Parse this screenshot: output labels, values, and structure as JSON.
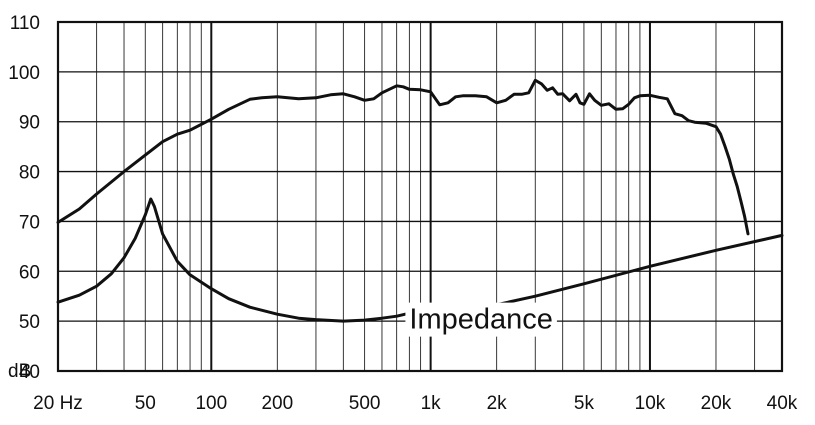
{
  "chart_data": {
    "type": "line",
    "x_scale": "log",
    "xlim": [
      20,
      40000
    ],
    "ylim": [
      40,
      110
    ],
    "grid": true,
    "y_unit_label": "dB",
    "y_ticks": [
      40,
      50,
      60,
      70,
      80,
      90,
      100,
      110
    ],
    "y_tick_labels": [
      "40",
      "50",
      "60",
      "70",
      "80",
      "90",
      "100",
      "110"
    ],
    "x_ticks": [
      20,
      50,
      100,
      200,
      500,
      1000,
      2000,
      5000,
      10000,
      20000,
      40000
    ],
    "x_tick_labels": [
      "20 Hz",
      "50",
      "100",
      "200",
      "500",
      "1k",
      "2k",
      "5k",
      "10k",
      "20k",
      "40k"
    ],
    "annotations": [
      {
        "text": "Impedance",
        "x": 1700,
        "y": 48.5
      }
    ],
    "series": [
      {
        "name": "",
        "x": [
          20,
          25,
          30,
          40,
          50,
          60,
          70,
          80,
          100,
          120,
          150,
          170,
          200,
          250,
          300,
          350,
          400,
          450,
          500,
          550,
          600,
          700,
          750,
          800,
          900,
          1000,
          1100,
          1200,
          1300,
          1400,
          1600,
          1800,
          2000,
          2200,
          2400,
          2600,
          2800,
          3000,
          3200,
          3400,
          3600,
          3800,
          4000,
          4300,
          4600,
          4800,
          5000,
          5300,
          5600,
          6000,
          6500,
          7000,
          7500,
          8000,
          8500,
          9000,
          10000,
          11000,
          12000,
          13000,
          14000,
          15000,
          16000,
          18000,
          20000,
          21000,
          22000,
          23000,
          24000,
          25000,
          26000,
          27000,
          28000
        ],
        "y": [
          69.8,
          72.5,
          75.5,
          80,
          83.3,
          86,
          87.5,
          88.3,
          90.5,
          92.5,
          94.5,
          94.8,
          95,
          94.6,
          94.8,
          95.4,
          95.6,
          95,
          94.3,
          94.6,
          95.8,
          97.2,
          97,
          96.5,
          96.4,
          96,
          93.4,
          93.8,
          95,
          95.2,
          95.2,
          95,
          93.8,
          94.3,
          95.5,
          95.5,
          95.8,
          98.3,
          97.6,
          96.3,
          96.8,
          95.5,
          95.6,
          94.2,
          95.5,
          93.8,
          93.5,
          95.6,
          94.3,
          93.3,
          93.6,
          92.5,
          92.6,
          93.5,
          94.8,
          95.2,
          95.3,
          94.9,
          94.6,
          91.6,
          91.2,
          90.2,
          89.9,
          89.7,
          89,
          87.5,
          85,
          82.5,
          79.5,
          77,
          74,
          71,
          67.5
        ]
      },
      {
        "name": "Impedance",
        "x": [
          20,
          25,
          30,
          35,
          40,
          45,
          50,
          53,
          55,
          60,
          70,
          80,
          100,
          120,
          150,
          200,
          250,
          300,
          400,
          500,
          600,
          700,
          800,
          900,
          1000,
          1100,
          1200,
          1400,
          1600,
          2000,
          3000,
          5000,
          10000,
          20000,
          40000
        ],
        "y": [
          53.8,
          55.2,
          57,
          59.5,
          62.7,
          66.6,
          71.3,
          74.5,
          73,
          67.5,
          62,
          59.3,
          56.5,
          54.5,
          52.8,
          51.4,
          50.6,
          50.3,
          50,
          50.2,
          50.6,
          51,
          51.6,
          52.1,
          52.7,
          53,
          52.6,
          52.3,
          52.4,
          53.3,
          55,
          57.5,
          61,
          64.2,
          67.2
        ]
      }
    ]
  }
}
